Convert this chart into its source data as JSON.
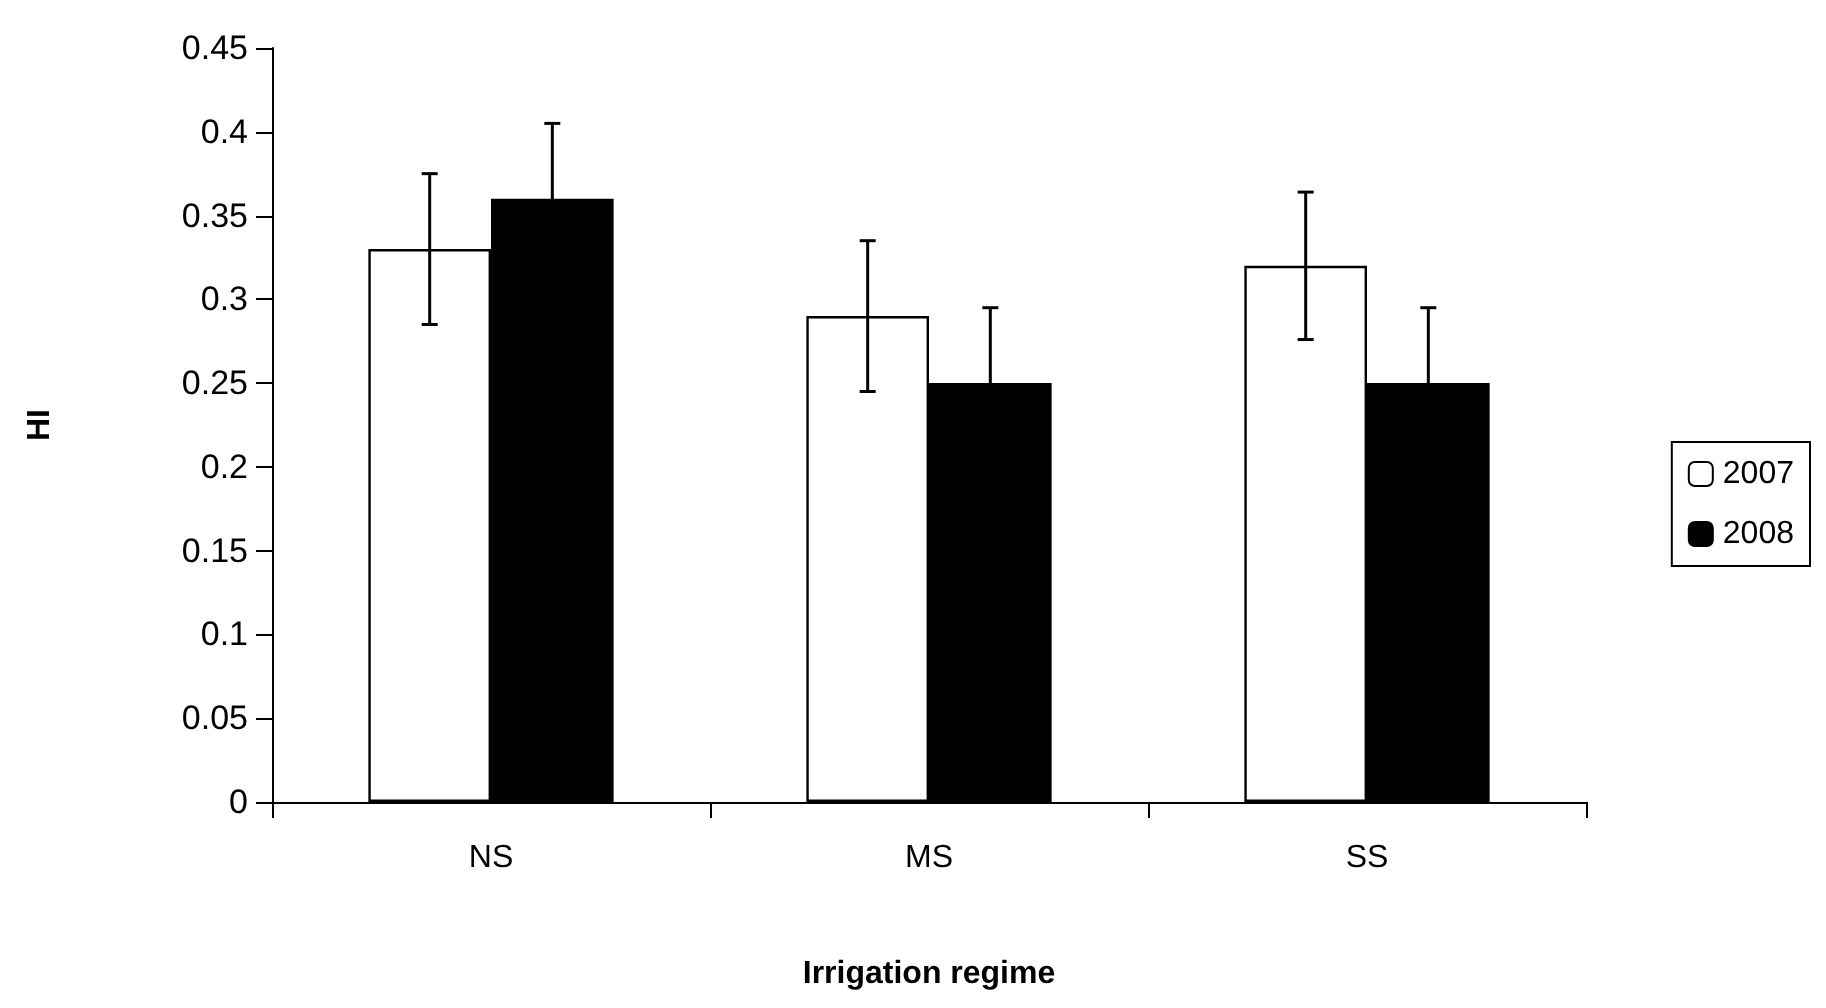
{
  "chart_data": {
    "type": "bar",
    "xlabel": "Irrigation regime",
    "ylabel": "HI",
    "categories": [
      "NS",
      "MS",
      "SS"
    ],
    "series": [
      {
        "name": "2007",
        "color": "#ffffff",
        "values": [
          0.33,
          0.29,
          0.32
        ],
        "errors": [
          0.045,
          0.045,
          0.044
        ]
      },
      {
        "name": "2008",
        "color": "#000000",
        "values": [
          0.36,
          0.25,
          0.25
        ],
        "errors": [
          0.045,
          0.045,
          0.045
        ]
      }
    ],
    "ylim": [
      0,
      0.45
    ],
    "yticks": [
      0,
      0.05,
      0.1,
      0.15,
      0.2,
      0.25,
      0.3,
      0.35,
      0.4,
      0.45
    ],
    "legend": "right"
  }
}
